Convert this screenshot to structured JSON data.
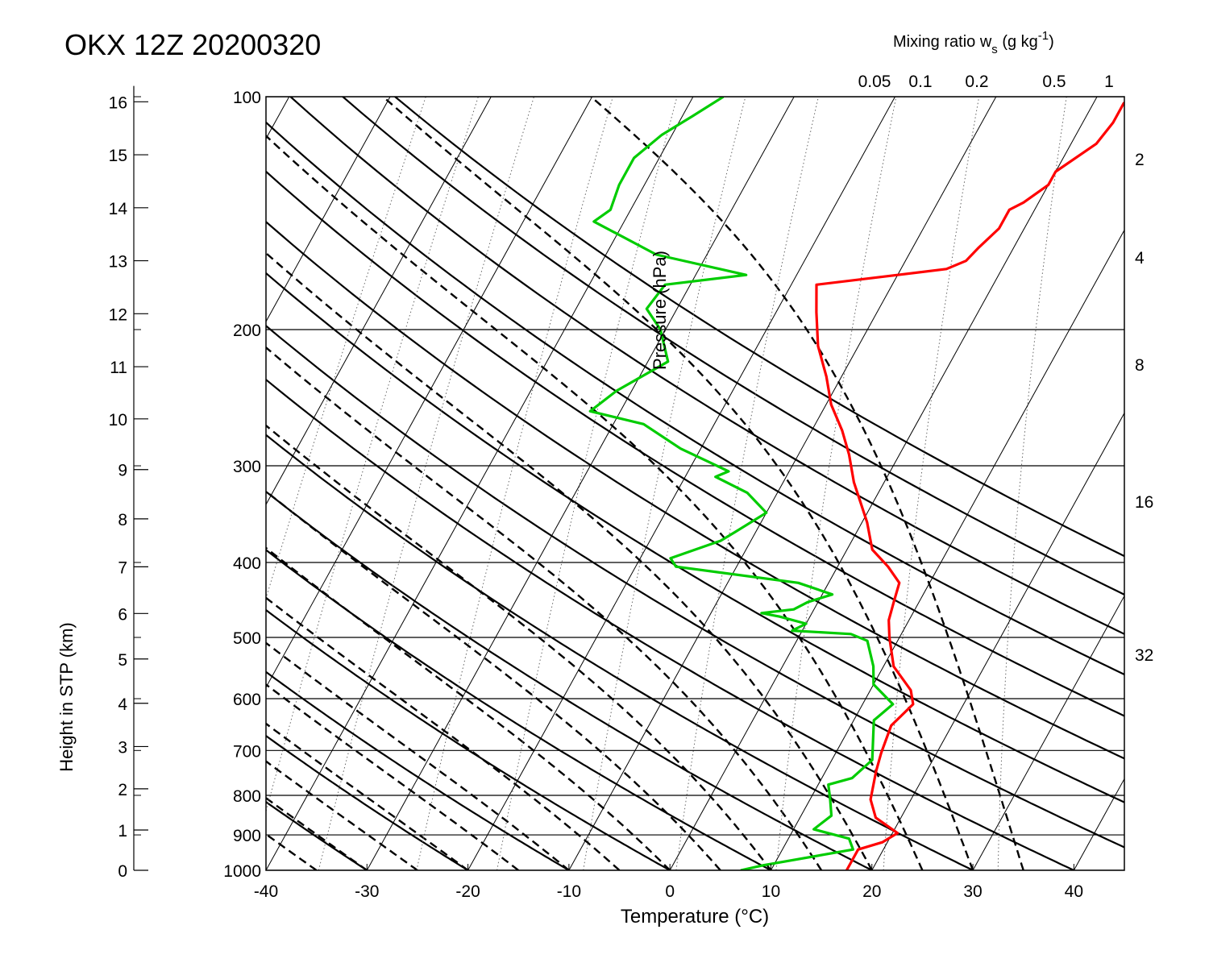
{
  "chart_data": {
    "type": "line",
    "title": "OKX 12Z 20200320",
    "xlabel": "Temperature (°C)",
    "ylabel": "Pressure (hPa)",
    "height_label": "Height in STP (km)",
    "mixing_ratio_label": "Mixing ratio w",
    "mixing_ratio_sub": "s",
    "mixing_ratio_units_pre": " (g kg",
    "mixing_ratio_sup": "-1",
    "mixing_ratio_units_post": ")",
    "xlim": [
      -40,
      45
    ],
    "ylim": [
      1000,
      100
    ],
    "x_ticks": [
      "-40",
      "-30",
      "-20",
      "-10",
      "0",
      "10",
      "20",
      "30",
      "40"
    ],
    "pressure_ticks": [
      "100",
      "200",
      "300",
      "400",
      "500",
      "600",
      "700",
      "800",
      "900",
      "1000"
    ],
    "height_ticks": [
      "0",
      "1",
      "2",
      "3",
      "4",
      "5",
      "6",
      "7",
      "8",
      "9",
      "10",
      "11",
      "12",
      "13",
      "14",
      "15",
      "16"
    ],
    "mixing_ratio_top_labels": [
      "0.05",
      "0.1",
      "0.2",
      "0.5",
      "1"
    ],
    "mixing_ratio_right_labels": [
      "2",
      "4",
      "8",
      "16",
      "32"
    ],
    "colors": {
      "temperature": "#ff0000",
      "dewpoint": "#00cc00"
    },
    "series": [
      {
        "role": "temperature",
        "points": [
          [
            1000,
            17.5
          ],
          [
            940,
            17.5
          ],
          [
            920,
            19.5
          ],
          [
            895,
            20.5
          ],
          [
            855,
            17.5
          ],
          [
            810,
            16.0
          ],
          [
            745,
            15.0
          ],
          [
            705,
            14.5
          ],
          [
            650,
            14.0
          ],
          [
            610,
            15.0
          ],
          [
            585,
            14.0
          ],
          [
            545,
            11.0
          ],
          [
            500,
            9.0
          ],
          [
            475,
            8.0
          ],
          [
            450,
            7.5
          ],
          [
            425,
            7.0
          ],
          [
            405,
            5.0
          ],
          [
            385,
            2.5
          ],
          [
            355,
            0.5
          ],
          [
            315,
            -3.0
          ],
          [
            290,
            -5.0
          ],
          [
            270,
            -7.0
          ],
          [
            250,
            -9.5
          ],
          [
            230,
            -11.5
          ],
          [
            210,
            -14.0
          ],
          [
            190,
            -16.0
          ],
          [
            175,
            -17.5
          ],
          [
            170,
            -10.0
          ],
          [
            167,
            -5.5
          ],
          [
            163,
            -4.0
          ],
          [
            157,
            -3.5
          ],
          [
            148,
            -2.5
          ],
          [
            140,
            -2.5
          ],
          [
            137,
            -1.5
          ],
          [
            130,
            0.0
          ],
          [
            125,
            0.0
          ],
          [
            115,
            2.5
          ],
          [
            108,
            3.0
          ],
          [
            102,
            3.0
          ],
          [
            100,
            3.5
          ]
        ]
      },
      {
        "role": "dewpoint",
        "points": [
          [
            1000,
            7.0
          ],
          [
            985,
            9.0
          ],
          [
            940,
            17.0
          ],
          [
            910,
            16.0
          ],
          [
            885,
            12.0
          ],
          [
            850,
            13.0
          ],
          [
            810,
            12.0
          ],
          [
            775,
            11.0
          ],
          [
            760,
            13.0
          ],
          [
            720,
            14.0
          ],
          [
            640,
            12.0
          ],
          [
            610,
            13.0
          ],
          [
            575,
            10.0
          ],
          [
            545,
            9.0
          ],
          [
            505,
            7.0
          ],
          [
            495,
            5.0
          ],
          [
            490,
            -1.0
          ],
          [
            480,
            0.0
          ],
          [
            470,
            -3.0
          ],
          [
            465,
            -5.0
          ],
          [
            460,
            -2.0
          ],
          [
            450,
            -1.0
          ],
          [
            445,
            0.0
          ],
          [
            440,
            1.0
          ],
          [
            425,
            -3.0
          ],
          [
            405,
            -16.0
          ],
          [
            395,
            -17.0
          ],
          [
            375,
            -13.0
          ],
          [
            365,
            -12.0
          ],
          [
            345,
            -10.0
          ],
          [
            325,
            -13.0
          ],
          [
            310,
            -17.0
          ],
          [
            305,
            -16.0
          ],
          [
            285,
            -22.0
          ],
          [
            265,
            -27.0
          ],
          [
            255,
            -33.0
          ],
          [
            240,
            -31.5
          ],
          [
            220,
            -28.0
          ],
          [
            200,
            -30.5
          ],
          [
            188,
            -33.0
          ],
          [
            175,
            -32.5
          ],
          [
            170,
            -25.0
          ],
          [
            160,
            -35.0
          ],
          [
            145,
            -43.0
          ],
          [
            140,
            -42.0
          ],
          [
            130,
            -42.5
          ],
          [
            120,
            -42.5
          ],
          [
            112,
            -41.0
          ],
          [
            106,
            -39.0
          ],
          [
            100,
            -37.0
          ]
        ]
      }
    ],
    "dry_adiabats_theta_C": [
      -60,
      -50,
      -40,
      -30,
      -20,
      -10,
      0,
      10,
      20,
      30,
      40,
      50,
      60,
      70,
      80,
      90,
      100,
      110,
      120
    ],
    "moist_adiabats_C": [
      -40,
      -35,
      -30,
      -25,
      -20,
      -15,
      -10,
      -5,
      0,
      5,
      10,
      15,
      20,
      25,
      30,
      35
    ],
    "saturation_lines_g_kg": [
      0.05,
      0.1,
      0.2,
      0.5,
      1,
      2,
      4,
      8,
      16,
      32
    ],
    "grid": true
  }
}
